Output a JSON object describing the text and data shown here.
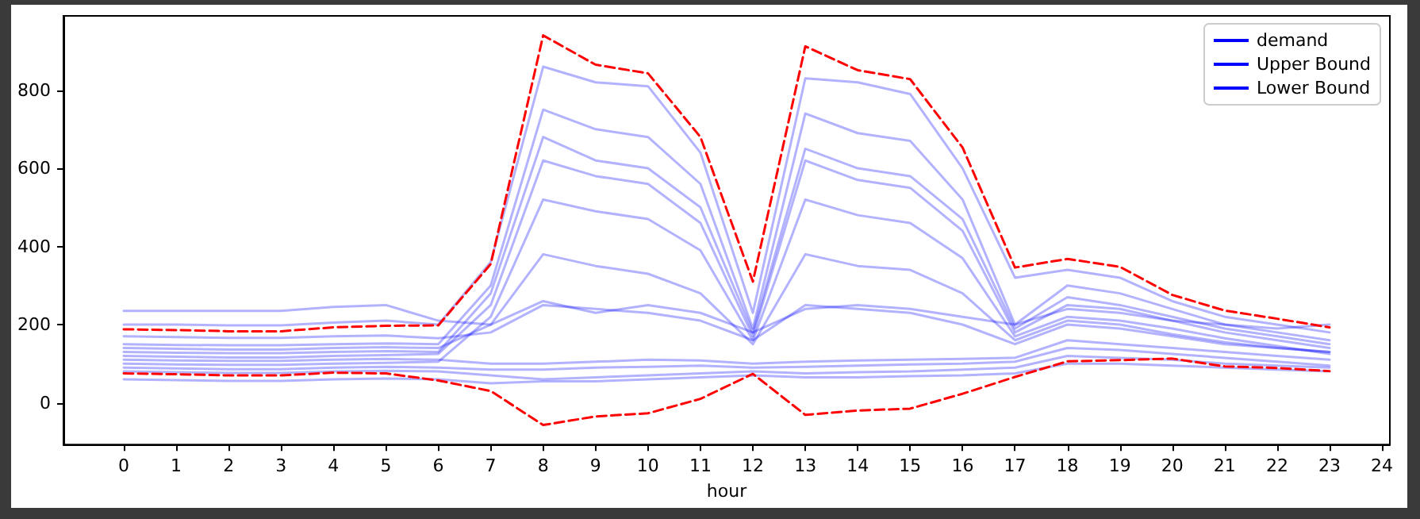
{
  "chart_data": {
    "type": "line",
    "xlabel": "hour",
    "x": [
      0,
      1,
      2,
      3,
      4,
      5,
      6,
      7,
      8,
      9,
      10,
      11,
      12,
      13,
      14,
      15,
      16,
      17,
      18,
      19,
      20,
      21,
      22,
      23
    ],
    "xlim": [
      -1.15,
      24.15
    ],
    "xticks": [
      0,
      1,
      2,
      3,
      4,
      5,
      6,
      7,
      8,
      9,
      10,
      11,
      12,
      13,
      14,
      15,
      16,
      17,
      18,
      19,
      20,
      21,
      22,
      23,
      24
    ],
    "ylim": [
      -107,
      990
    ],
    "yticks": [
      0,
      200,
      400,
      600,
      800
    ],
    "grid": false,
    "legend": "top right",
    "series": [
      {
        "name": "demand",
        "color": "#0000ff",
        "line_style": "solid",
        "values": [
          150,
          148,
          147,
          147,
          150,
          152,
          150,
          300,
          750,
          700,
          680,
          560,
          190,
          740,
          690,
          670,
          520,
          200,
          300,
          280,
          240,
          200,
          180,
          160
        ]
      },
      {
        "name": "Upper Bound",
        "color": "#0000ff",
        "line_style": "solid",
        "values": [
          120,
          118,
          116,
          116,
          120,
          122,
          125,
          250,
          620,
          580,
          560,
          460,
          170,
          620,
          570,
          550,
          440,
          180,
          250,
          240,
          210,
          180,
          160,
          140
        ]
      },
      {
        "name": "Lower Bound",
        "color": "#0000ff",
        "line_style": "solid",
        "values": [
          100,
          98,
          97,
          97,
          100,
          102,
          105,
          220,
          520,
          490,
          470,
          390,
          160,
          520,
          480,
          460,
          370,
          170,
          220,
          210,
          190,
          165,
          145,
          125
        ]
      },
      {
        "color": "#0000ff",
        "line_style": "solid",
        "values": [
          110,
          108,
          107,
          107,
          110,
          112,
          110,
          100,
          100,
          105,
          110,
          108,
          100,
          105,
          108,
          110,
          112,
          115,
          160,
          150,
          140,
          130,
          120,
          110
        ]
      },
      {
        "color": "#0000ff",
        "line_style": "solid",
        "values": [
          90,
          88,
          86,
          86,
          90,
          92,
          90,
          85,
          85,
          90,
          92,
          95,
          90,
          92,
          95,
          98,
          100,
          105,
          140,
          135,
          125,
          115,
          105,
          95
        ]
      },
      {
        "color": "#0000ff",
        "line_style": "solid",
        "values": [
          140,
          138,
          136,
          136,
          140,
          142,
          140,
          200,
          380,
          350,
          330,
          280,
          150,
          380,
          350,
          340,
          280,
          160,
          210,
          200,
          175,
          155,
          140,
          130
        ]
      },
      {
        "color": "#0000ff",
        "line_style": "solid",
        "values": [
          200,
          200,
          198,
          198,
          205,
          210,
          200,
          360,
          860,
          820,
          810,
          640,
          230,
          830,
          820,
          790,
          600,
          320,
          340,
          320,
          260,
          220,
          200,
          180
        ]
      },
      {
        "color": "#0000ff",
        "line_style": "solid",
        "values": [
          170,
          168,
          166,
          166,
          170,
          172,
          165,
          180,
          250,
          240,
          230,
          210,
          160,
          250,
          240,
          230,
          200,
          150,
          200,
          190,
          170,
          150,
          140,
          130
        ]
      },
      {
        "color": "#0000ff",
        "line_style": "solid",
        "values": [
          80,
          78,
          76,
          76,
          80,
          82,
          80,
          70,
          60,
          65,
          70,
          75,
          80,
          75,
          78,
          80,
          85,
          90,
          120,
          115,
          110,
          100,
          95,
          90
        ]
      },
      {
        "color": "#0000ff",
        "line_style": "solid",
        "values": [
          130,
          128,
          127,
          127,
          130,
          132,
          130,
          280,
          680,
          620,
          600,
          500,
          180,
          650,
          600,
          580,
          470,
          190,
          270,
          250,
          220,
          190,
          170,
          150
        ]
      },
      {
        "color": "#0000ff",
        "line_style": "solid",
        "values": [
          60,
          58,
          56,
          56,
          60,
          62,
          60,
          50,
          55,
          55,
          60,
          65,
          70,
          65,
          65,
          68,
          70,
          75,
          100,
          100,
          95,
          90,
          85,
          80
        ]
      },
      {
        "color": "#0000ff",
        "line_style": "solid",
        "values": [
          235,
          235,
          235,
          235,
          245,
          250,
          210,
          200,
          260,
          230,
          250,
          230,
          180,
          240,
          250,
          240,
          220,
          200,
          240,
          230,
          210,
          200,
          190,
          200
        ]
      },
      {
        "color": "#ff0000",
        "line_style": "dashed",
        "values": [
          188,
          186,
          183,
          183,
          193,
          197,
          198,
          355,
          940,
          865,
          843,
          680,
          310,
          912,
          851,
          828,
          653,
          346,
          368,
          348,
          276,
          236,
          215,
          193
        ]
      },
      {
        "color": "#ff0000",
        "line_style": "dashed",
        "values": [
          75,
          73,
          70,
          70,
          77,
          75,
          57,
          30,
          -57,
          -35,
          -27,
          10,
          74,
          -31,
          -20,
          -15,
          23,
          66,
          106,
          109,
          113,
          93,
          89,
          81
        ]
      }
    ]
  }
}
